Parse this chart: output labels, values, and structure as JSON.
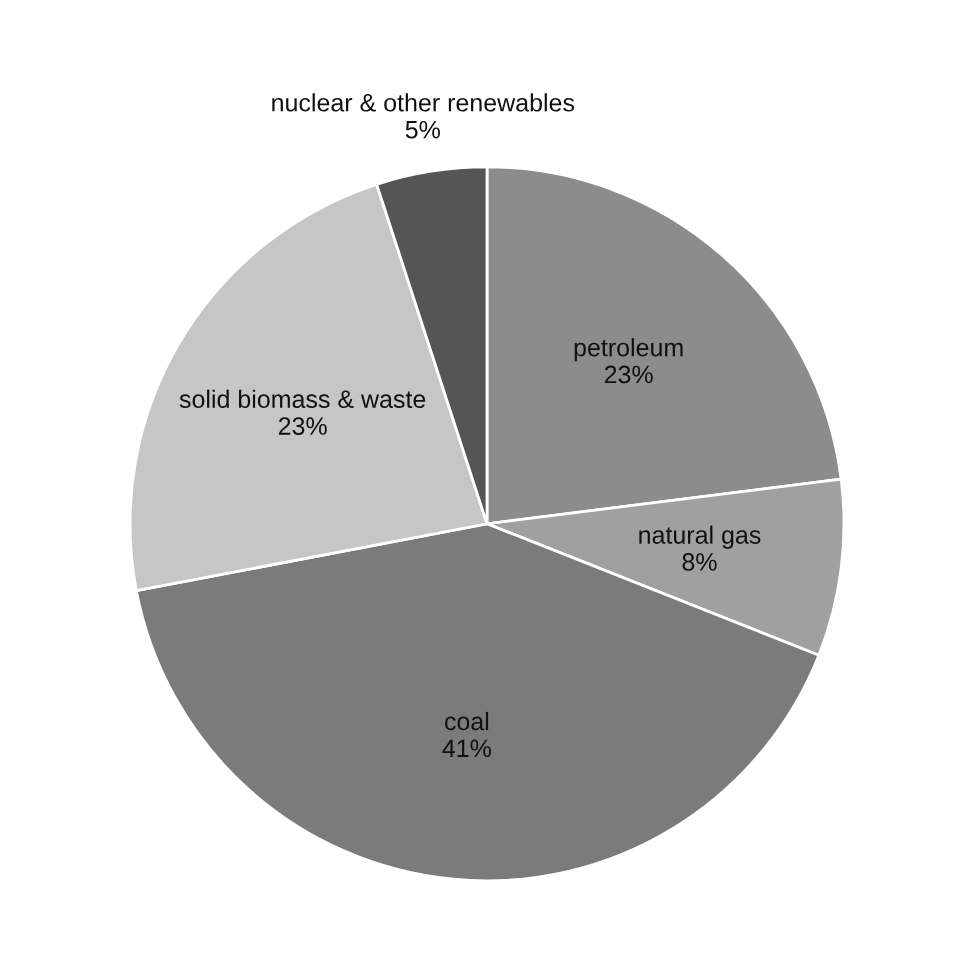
{
  "chart_data": {
    "type": "pie",
    "categories": [
      "petroleum",
      "natural gas",
      "coal",
      "solid biomass & waste",
      "nuclear & other renewables"
    ],
    "values": [
      23,
      8,
      41,
      23,
      5
    ],
    "value_labels": [
      "23%",
      "8%",
      "41%",
      "23%",
      "5%"
    ],
    "colors": [
      "#8c8c8c",
      "#a0a0a0",
      "#7b7b7b",
      "#c6c6c6",
      "#555555"
    ]
  }
}
